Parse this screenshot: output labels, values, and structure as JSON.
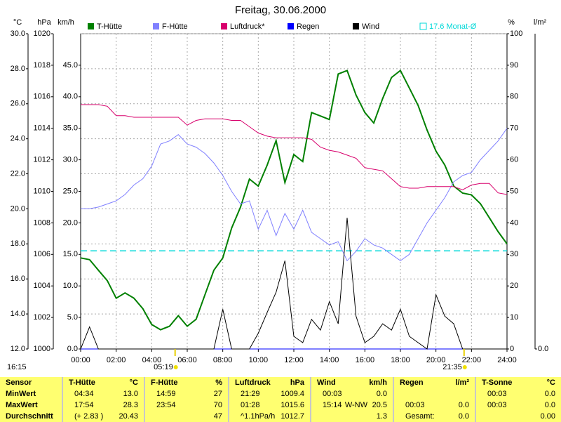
{
  "chart_data": {
    "type": "line",
    "title": "Freitag, 30.06.2000",
    "timestamp": "16:15",
    "grid": true,
    "x": [
      0,
      0.5,
      1,
      1.5,
      2,
      2.5,
      3,
      3.5,
      4,
      4.5,
      5,
      5.5,
      6,
      6.5,
      7,
      7.5,
      8,
      8.5,
      9,
      9.5,
      10,
      10.5,
      11,
      11.5,
      12,
      12.5,
      13,
      13.5,
      14,
      14.5,
      15,
      15.5,
      16,
      16.5,
      17,
      17.5,
      18,
      18.5,
      19,
      19.5,
      20,
      20.5,
      21,
      21.5,
      22,
      22.5,
      23,
      23.5,
      24
    ],
    "xlim": [
      0,
      24
    ],
    "xticks": [
      {
        "value": 0,
        "label": "00:00"
      },
      {
        "value": 2,
        "label": "02:00"
      },
      {
        "value": 4,
        "label": "04:00"
      },
      {
        "value": 6,
        "label": "06:00"
      },
      {
        "value": 8,
        "label": "08:00"
      },
      {
        "value": 10,
        "label": "10:00"
      },
      {
        "value": 12,
        "label": "12:00"
      },
      {
        "value": 14,
        "label": "14:00"
      },
      {
        "value": 16,
        "label": "16:00"
      },
      {
        "value": 18,
        "label": "18:00"
      },
      {
        "value": 20,
        "label": "20:00"
      },
      {
        "value": 22,
        "label": "22:00"
      },
      {
        "value": 24,
        "label": "24:00"
      }
    ],
    "axes": [
      {
        "unit": "°C",
        "side": "left",
        "lim": [
          12,
          30
        ],
        "ticks": [
          {
            "value": 12,
            "label": "12.0"
          },
          {
            "value": 14,
            "label": "14.0"
          },
          {
            "value": 16,
            "label": "16.0"
          },
          {
            "value": 18,
            "label": "18.0"
          },
          {
            "value": 20,
            "label": "20.0"
          },
          {
            "value": 22,
            "label": "22.0"
          },
          {
            "value": 24,
            "label": "24.0"
          },
          {
            "value": 26,
            "label": "26.0"
          },
          {
            "value": 28,
            "label": "28.0"
          },
          {
            "value": 30,
            "label": "30.0"
          }
        ]
      },
      {
        "unit": "hPa",
        "side": "left",
        "lim": [
          1000,
          1020
        ],
        "ticks": [
          1000,
          1002,
          1004,
          1006,
          1008,
          1010,
          1012,
          1014,
          1016,
          1018,
          1020
        ]
      },
      {
        "unit": "km/h",
        "side": "left",
        "lim": [
          0,
          50
        ],
        "ticks": [
          {
            "value": 0,
            "label": "0.0"
          },
          {
            "value": 5,
            "label": "5.0"
          },
          {
            "value": 10,
            "label": "10.0"
          },
          {
            "value": 15,
            "label": "15.0"
          },
          {
            "value": 20,
            "label": "20.0"
          },
          {
            "value": 25,
            "label": "25.0"
          },
          {
            "value": 30,
            "label": "30.0"
          },
          {
            "value": 35,
            "label": "35.0"
          },
          {
            "value": 40,
            "label": "40.0"
          },
          {
            "value": 45,
            "label": "45.0"
          }
        ]
      },
      {
        "unit": "%",
        "side": "right",
        "lim": [
          0,
          100
        ],
        "ticks": [
          0,
          10,
          20,
          30,
          40,
          50,
          60,
          70,
          80,
          90,
          100
        ]
      },
      {
        "unit": "l/m²",
        "side": "right",
        "lim": [
          0,
          10
        ],
        "ticks": [
          {
            "value": 0,
            "label": "0.0"
          }
        ]
      }
    ],
    "series": [
      {
        "name": "T-Hütte",
        "color": "#008000",
        "axis": 0,
        "values": [
          17.2,
          17.1,
          16.5,
          15.9,
          14.9,
          15.2,
          14.9,
          14.3,
          13.4,
          13.1,
          13.3,
          13.9,
          13.3,
          13.7,
          15.1,
          16.5,
          17.2,
          18.9,
          20.1,
          21.7,
          21.3,
          22.5,
          23.9,
          21.5,
          23.1,
          22.7,
          25.5,
          25.3,
          25.1,
          27.7,
          27.9,
          26.5,
          25.5,
          24.9,
          26.3,
          27.5,
          27.9,
          26.9,
          25.9,
          24.5,
          23.3,
          22.5,
          21.3,
          20.9,
          20.8,
          20.3,
          19.5,
          18.7,
          18.0
        ]
      },
      {
        "name": "F-Hütte",
        "color": "#8080ff",
        "axis": 3,
        "values": [
          44.5,
          44.5,
          45,
          46,
          47,
          49,
          52,
          54,
          58,
          65,
          66,
          68,
          65,
          64,
          62,
          59,
          55,
          50,
          46,
          47,
          38,
          44,
          36,
          43,
          38,
          44,
          37,
          35,
          33,
          34,
          28,
          31,
          35,
          33,
          32,
          30,
          28,
          30,
          35,
          40,
          44,
          48,
          53,
          55,
          56,
          60,
          63,
          66,
          70
        ]
      },
      {
        "name": "Luftdruck*",
        "color": "#d8006c",
        "axis": 1,
        "values": [
          1015.5,
          1015.5,
          1015.5,
          1015.4,
          1014.8,
          1014.8,
          1014.7,
          1014.7,
          1014.7,
          1014.7,
          1014.7,
          1014.7,
          1014.2,
          1014.5,
          1014.6,
          1014.6,
          1014.6,
          1014.5,
          1014.5,
          1014.1,
          1013.7,
          1013.5,
          1013.4,
          1013.4,
          1013.4,
          1013.4,
          1013.3,
          1012.8,
          1012.6,
          1012.5,
          1012.3,
          1012.1,
          1011.5,
          1011.4,
          1011.3,
          1010.8,
          1010.3,
          1010.2,
          1010.2,
          1010.3,
          1010.3,
          1010.3,
          1010.3,
          1010.1,
          1010.4,
          1010.5,
          1010.5,
          1009.9,
          1009.8
        ]
      },
      {
        "name": "Regen",
        "color": "#0000ff",
        "axis": 4,
        "values": [
          0,
          0,
          0,
          0,
          0,
          0,
          0,
          0,
          0,
          0,
          0,
          0,
          0,
          0,
          0,
          0,
          0,
          0,
          0,
          0,
          0,
          0,
          0,
          0,
          0,
          0,
          0,
          0,
          0,
          0,
          0,
          0,
          0,
          0,
          0,
          0,
          0,
          0,
          0,
          0,
          0,
          0,
          0,
          0,
          0,
          0,
          0,
          0,
          0
        ]
      },
      {
        "name": "Wind",
        "color": "#000000",
        "axis": 2,
        "values": [
          0,
          3.5,
          0,
          0,
          0,
          0,
          0,
          0,
          0,
          0,
          0,
          0,
          0,
          0,
          0,
          0,
          6.3,
          0,
          0,
          0,
          2.5,
          5.8,
          9,
          14,
          2,
          1,
          4.7,
          3,
          7.5,
          4,
          20.8,
          5.2,
          1,
          2,
          4,
          3,
          6.3,
          2,
          1,
          0,
          8.6,
          5.2,
          4,
          0,
          0,
          0,
          0,
          0,
          0
        ]
      }
    ],
    "reference": {
      "label": "17.6 Monat-Ø",
      "value": 17.6,
      "axis": 0,
      "color": "#00d8d8"
    },
    "sunrise": {
      "value": 5.3167,
      "label": "05:19"
    },
    "sunset": {
      "value": 21.5833,
      "label": "21:35"
    }
  },
  "table": {
    "columns": [
      {
        "name": "Sensor"
      },
      {
        "name": "T-Hütte",
        "unit": "°C"
      },
      {
        "name": "F-Hütte",
        "unit": "%"
      },
      {
        "name": "Luftdruck",
        "unit": "hPa"
      },
      {
        "name": "Wind",
        "unit": "km/h"
      },
      {
        "name": "Regen",
        "unit": "l/m²"
      },
      {
        "name": "T-Sonne",
        "unit": "°C"
      }
    ],
    "rows": [
      {
        "label": "MinWert",
        "cells": [
          [
            "04:34",
            "13.0"
          ],
          [
            "14:59",
            "27"
          ],
          [
            "21:29",
            "1009.4"
          ],
          [
            "00:03",
            "0.0"
          ],
          null,
          [
            "00:03",
            "0.0"
          ]
        ]
      },
      {
        "label": "MaxWert",
        "cells": [
          [
            "17:54",
            "28.3"
          ],
          [
            "23:54",
            "70"
          ],
          [
            "01:28",
            "1015.6"
          ],
          [
            "15:14",
            "W-NW",
            "20.5"
          ],
          [
            "00:03",
            "0.0"
          ],
          [
            "00:03",
            "0.0"
          ]
        ]
      },
      {
        "label": "Durchschnitt",
        "cells": [
          [
            "(+ 2.83 )",
            "20.43"
          ],
          [
            "47"
          ],
          [
            "^1.1hPa/h",
            "1012.7"
          ],
          [
            "1.3"
          ],
          [
            "Gesamt:",
            "0.0"
          ],
          [
            "0.00"
          ]
        ]
      }
    ]
  }
}
